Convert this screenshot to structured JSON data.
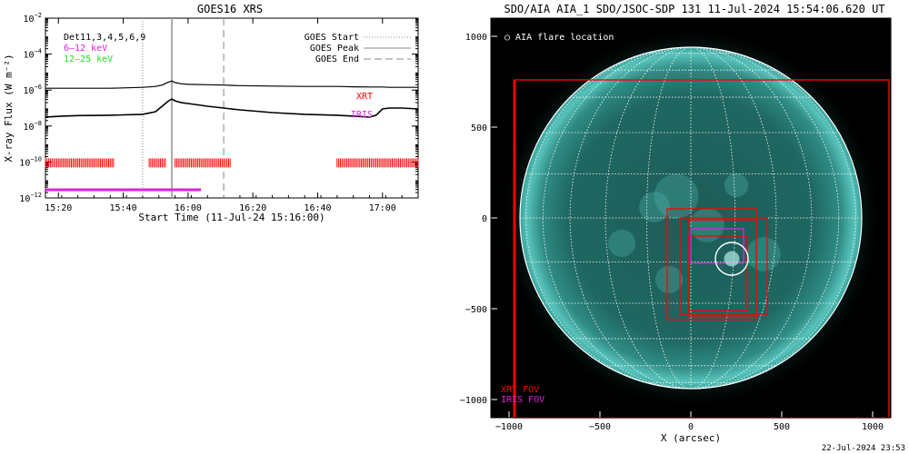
{
  "chart_data": [
    {
      "type": "line",
      "title": "GOES16 XRS",
      "xlabel": "Start Time (11-Jul-24 15:16:00)",
      "ylabel": "X-ray Flux (W m⁻²)",
      "x_ticks": [
        {
          "label": "15:20",
          "minutes": 4
        },
        {
          "label": "15:40",
          "minutes": 24
        },
        {
          "label": "16:00",
          "minutes": 44
        },
        {
          "label": "16:20",
          "minutes": 64
        },
        {
          "label": "16:40",
          "minutes": 84
        },
        {
          "label": "17:00",
          "minutes": 104
        }
      ],
      "xlim_minutes": [
        0,
        115
      ],
      "y_log_exponents": [
        -12,
        -10,
        -8,
        -6,
        -4,
        -2
      ],
      "y_scale": "log",
      "ylim": [
        "1e-12",
        "1e-2"
      ],
      "legend_top_left": [
        {
          "text": "Det11,3,4,5,6,9",
          "color": "#000000"
        },
        {
          "text": "6–12 keV",
          "color": "#e020e0"
        },
        {
          "text": "12–25 keV",
          "color": "#20e020"
        }
      ],
      "legend_top_right": [
        {
          "text": "GOES Start",
          "style": "dotted"
        },
        {
          "text": "GOES Peak",
          "style": "solid"
        },
        {
          "text": "GOES End",
          "style": "dashed"
        }
      ],
      "markers": {
        "goes_start": 30,
        "goes_peak": 39,
        "goes_end": 55
      },
      "instrument_labels": [
        {
          "text": "XRT",
          "color": "#ff0000"
        },
        {
          "text": "IRIS",
          "color": "#e020e0"
        }
      ],
      "series": [
        {
          "name": "XRS long (upper)",
          "color": "#000000",
          "x_minutes": [
            0,
            10,
            20,
            30,
            34,
            36,
            38,
            39,
            40,
            42,
            44,
            50,
            55,
            60,
            70,
            80,
            90,
            95,
            100,
            104,
            106,
            110,
            115
          ],
          "log10_flux": [
            -5.9,
            -5.9,
            -5.9,
            -5.85,
            -5.8,
            -5.72,
            -5.55,
            -5.5,
            -5.58,
            -5.65,
            -5.68,
            -5.7,
            -5.72,
            -5.75,
            -5.78,
            -5.8,
            -5.8,
            -5.82,
            -5.83,
            -5.83,
            -5.85,
            -5.85,
            -5.85
          ]
        },
        {
          "name": "XRS short (lower)",
          "color": "#000000",
          "x_minutes": [
            0,
            5,
            10,
            20,
            30,
            34,
            36,
            38,
            39,
            40,
            42,
            44,
            50,
            55,
            60,
            70,
            80,
            90,
            95,
            100,
            102,
            104,
            106,
            110,
            115
          ],
          "log10_flux": [
            -7.5,
            -7.45,
            -7.42,
            -7.4,
            -7.35,
            -7.2,
            -6.9,
            -6.6,
            -6.5,
            -6.6,
            -6.7,
            -6.75,
            -6.9,
            -7.0,
            -7.1,
            -7.25,
            -7.35,
            -7.4,
            -7.45,
            -7.5,
            -7.4,
            -7.05,
            -7.0,
            -7.0,
            -7.05
          ]
        }
      ],
      "coverage_bars": [
        {
          "label": "XRT",
          "color": "#ff0000",
          "ranges_minutes": [
            [
              0,
              21
            ],
            [
              32,
              37
            ],
            [
              40,
              57
            ],
            [
              90,
              115
            ]
          ]
        },
        {
          "label": "IRIS",
          "color": "#e020e0",
          "ranges_minutes": [
            [
              0,
              48
            ]
          ]
        }
      ]
    },
    {
      "type": "image",
      "title": "SDO/AIA AIA_1 SDO/JSOC-SDP 131 11-Jul-2024 15:54:06.620 UT",
      "xlabel": "X (arcsec)",
      "x_ticks": [
        -1000,
        -500,
        0,
        500,
        1000
      ],
      "y_ticks": [
        1000,
        500,
        0,
        -500,
        -1000
      ],
      "xlim": [
        -1100,
        1100
      ],
      "ylim": [
        -1100,
        1100
      ],
      "legend_label": "○ AIA flare location",
      "fov_labels": [
        {
          "text": "XRT FOV",
          "color": "#ff0000"
        },
        {
          "text": "IRIS FOV",
          "color": "#e020e0"
        }
      ],
      "solar_radius_arcsec": 940,
      "flare_location": [
        225,
        -225
      ],
      "flare_radius_arcsec": 60,
      "xrt_fov_big": [
        -970,
        760,
        1090,
        -1100
      ],
      "xrt_fov_boxes": [
        [
          -130,
          50,
          360,
          -560
        ],
        [
          -60,
          0,
          420,
          -530
        ],
        [
          -10,
          -10,
          360,
          -540
        ],
        [
          -10,
          -100,
          310,
          -510
        ]
      ],
      "iris_fov": [
        0,
        -60,
        290,
        -250
      ],
      "timestamp": "22-Jul-2024 23:53"
    }
  ]
}
